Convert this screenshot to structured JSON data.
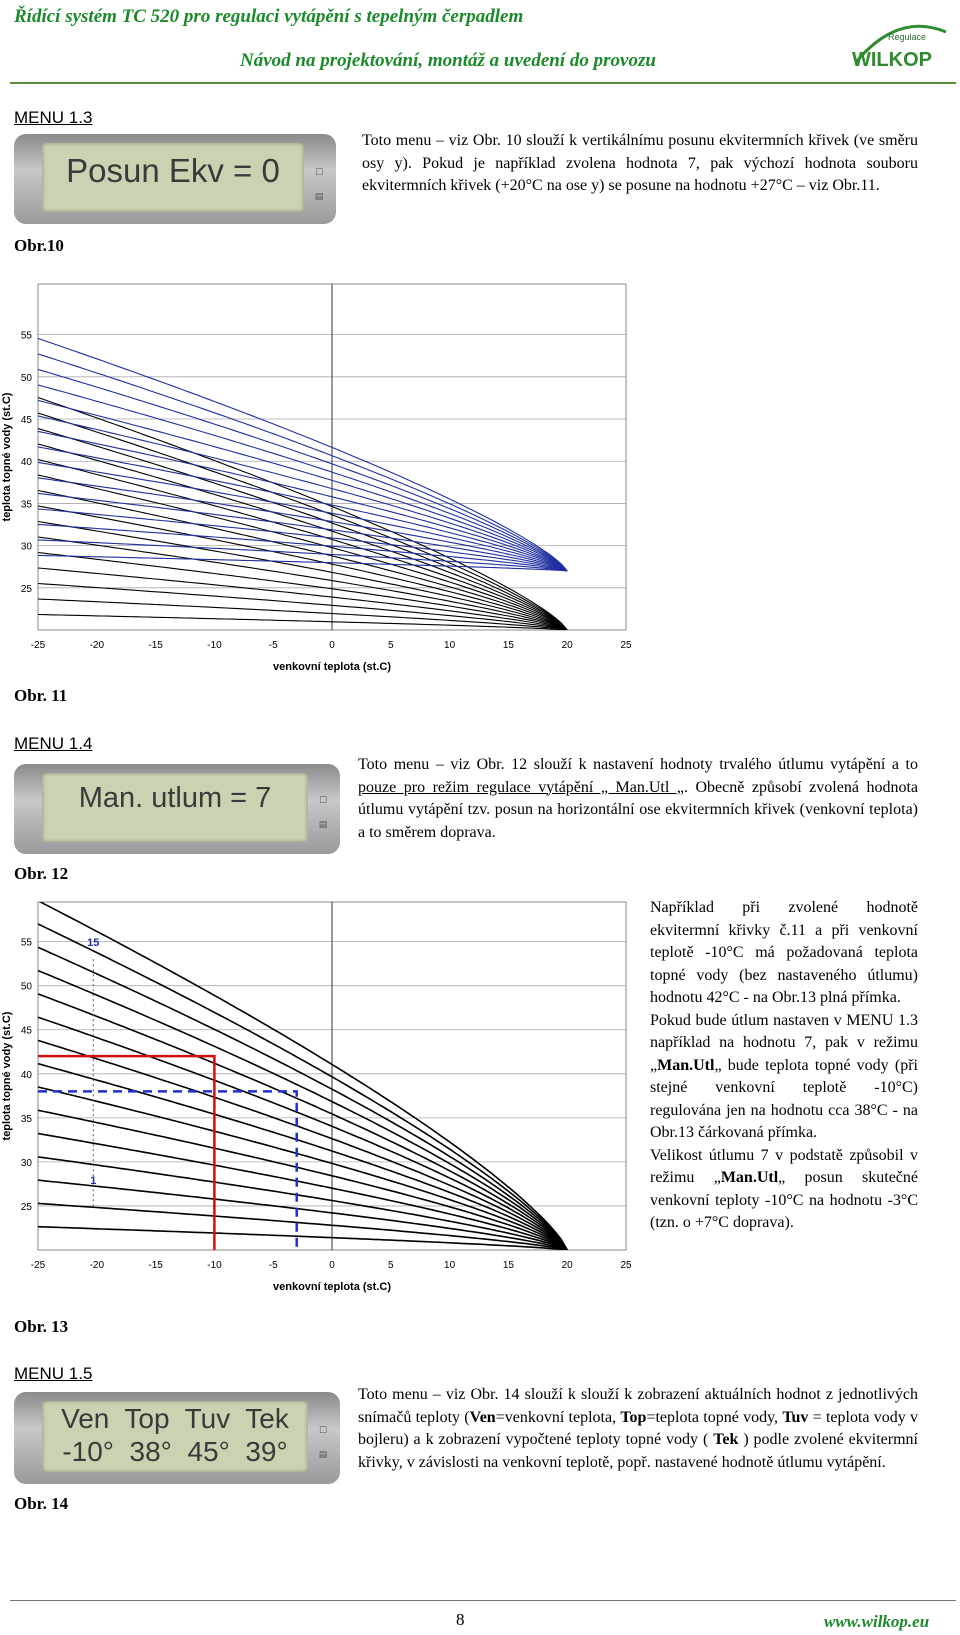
{
  "header": {
    "title": "Řídící systém TC 520 pro regulaci vytápění s tepelným čerpadlem",
    "subtitle": "Návod na projektování, montáž a uvedení do provozu",
    "logo_top": "Regulace",
    "logo_main": "WILKOP"
  },
  "menu13": {
    "heading": "MENU 1.3",
    "lcd_line": "Posun Ekv = 0",
    "figure_caption": "Obr.10",
    "text": "Toto menu – viz Obr. 10 slouží k vertikálnímu posunu ekvitermních křivek (ve směru osy y). Pokud je například zvolena hodnota 7, pak výchozí hodnota souboru ekvitermních křivek (+20°C na ose y) se posune na hodnotu +27°C – viz Obr.11."
  },
  "chart11": {
    "caption": "Obr. 11",
    "xlabel": "venkovní teplota (st.C)",
    "ylabel": "teplota topné vody (st.C)",
    "x_ticks": [
      "-25",
      "-20",
      "-15",
      "-10",
      "-5",
      "0",
      "5",
      "10",
      "15",
      "20",
      "25"
    ],
    "y_ticks": [
      "25",
      "30",
      "35",
      "40",
      "45",
      "50",
      "55"
    ],
    "line_color_shifted": "#1f2fa0",
    "line_color_original": "#000000"
  },
  "menu14": {
    "heading": "MENU 1.4",
    "lcd_line": "Man. utlum = 7",
    "figure_caption": "Obr. 12",
    "text_a": "Toto menu – viz Obr. 12 slouží k nastavení hodnoty trvalého útlumu vytápění a to ",
    "text_u": "pouze pro režim regulace vytápění „ Man.Utl „",
    "text_b": ". Obecně způsobí zvolená hodnota útlumu vytápění tzv. posun na horizontální ose ekvitermních křivek (venkovní teplota) a to směrem doprava.",
    "side_p1": "Například při zvolené hodnotě ekvitermní křivky č.11 a při venkovní teplotě -10°C má požadovaná teplota topné vody (bez nastaveného útlumu) hodnotu 42°C - na Obr.13 plná přímka.",
    "side_p2a": "Pokud bude útlum nastaven v MENU 1.3 například na hodnotu 7, pak v režimu „",
    "side_p2b": "Man.Utl",
    "side_p2c": "„ bude teplota topné vody (při stejné venkovní teplotě -10°C) regulována jen na hodnotu cca 38°C - na Obr.13 čárkovaná přímka.",
    "side_p3a": "Velikost útlumu 7 v podstatě způsobil v režimu „",
    "side_p3b": "Man.Utl",
    "side_p3c": "„ posun skutečné venkovní teploty -10°C na hodnotu -3°C (tzn. o +7°C doprava)."
  },
  "chart13": {
    "caption": "Obr. 13",
    "xlabel": "venkovní teplota (st.C)",
    "ylabel": "teplota topné vody (st.C)",
    "x_ticks": [
      "-25",
      "-20",
      "-15",
      "-10",
      "-5",
      "0",
      "5",
      "10",
      "15",
      "20",
      "25"
    ],
    "y_ticks": [
      "25",
      "30",
      "35",
      "40",
      "45",
      "50",
      "55"
    ],
    "curve_top_label": "15",
    "curve_bottom_label": "1",
    "solid_marker_color": "#d01010",
    "dashed_marker_color": "#1f2fd0"
  },
  "menu15": {
    "heading": "MENU 1.5",
    "lcd_line1": "Ven  Top  Tuv  Tek",
    "lcd_line2": "-10°  38°  45°  39°",
    "figure_caption": "Obr. 14",
    "t1": "Toto menu – viz Obr. 14 slouží k slouží k zobrazení aktuálních hodnot z jednotlivých snímačů teploty (",
    "b1": "Ven",
    "t2": "=venkovní teplota, ",
    "b2": "Top",
    "t3": "=teplota topné vody, ",
    "b3": "Tuv",
    "t4": " = teplota vody v bojleru) a k zobrazení vypočtené teploty topné vody ( ",
    "b4": "Tek",
    "t5": " ) podle zvolené ekvitermní křivky, v závislosti na venkovní teplotě, popř. nastavené hodnotě útlumu vytápění."
  },
  "footer": {
    "page_number": "8",
    "url": "www.wilkop.eu"
  }
}
